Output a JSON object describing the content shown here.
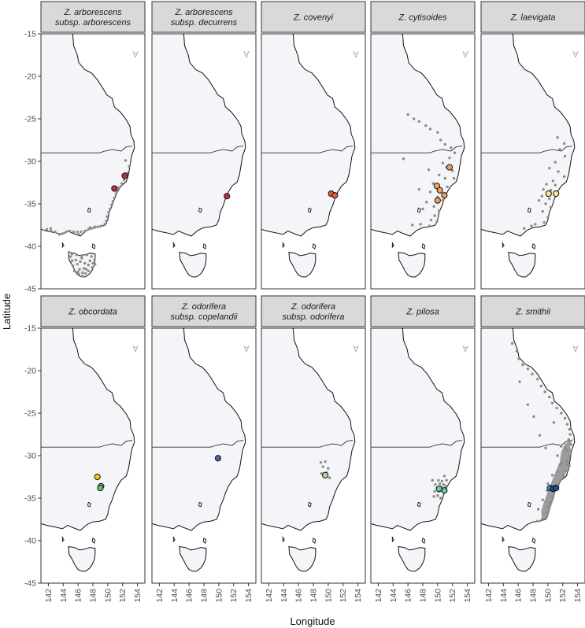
{
  "chart_data": {
    "type": "scatter",
    "xlabel": "Longitude",
    "ylabel": "Latitude",
    "xlim": [
      141,
      155
    ],
    "ylim": [
      -45,
      -15
    ],
    "xticks": [
      142,
      144,
      146,
      148,
      150,
      152,
      154
    ],
    "yticks": [
      -15,
      -20,
      -25,
      -30,
      -35,
      -40,
      -45
    ],
    "north_arrow": "Ɐ",
    "colors": {
      "land": "#f3f5f8",
      "coast": "#111111",
      "strip_bg": "#d9d9d9",
      "occurrence": "#8c8c8c",
      "outline": "#111111"
    },
    "panels": [
      {
        "title": [
          "Z. arborescens",
          "subsp. arborescens"
        ],
        "background": [
          [
            152.4,
            -29.9
          ],
          [
            152.9,
            -30.6
          ],
          [
            152.6,
            -31.4
          ],
          [
            152.2,
            -32.2
          ],
          [
            151.9,
            -32.6
          ],
          [
            151.5,
            -33.1
          ],
          [
            151.3,
            -33.5
          ],
          [
            151.1,
            -33.8
          ],
          [
            150.9,
            -34.3
          ],
          [
            150.7,
            -34.7
          ],
          [
            150.5,
            -35.1
          ],
          [
            150.3,
            -35.6
          ],
          [
            150.1,
            -36.0
          ],
          [
            149.9,
            -36.5
          ],
          [
            149.8,
            -37.0
          ],
          [
            149.6,
            -37.4
          ],
          [
            149.1,
            -37.6
          ],
          [
            148.7,
            -37.7
          ],
          [
            148.2,
            -37.8
          ],
          [
            147.8,
            -37.9
          ],
          [
            147.4,
            -38.0
          ],
          [
            146.9,
            -38.2
          ],
          [
            146.4,
            -38.3
          ],
          [
            145.9,
            -38.3
          ],
          [
            145.4,
            -38.3
          ],
          [
            144.9,
            -38.2
          ],
          [
            144.4,
            -38.3
          ],
          [
            143.9,
            -38.5
          ],
          [
            143.5,
            -38.6
          ],
          [
            142.9,
            -38.3
          ],
          [
            142.4,
            -38.2
          ],
          [
            141.8,
            -38.0
          ],
          [
            142.3,
            -37.9
          ],
          [
            146.1,
            -38.6
          ],
          [
            147.6,
            -37.8
          ],
          [
            148.3,
            -37.7
          ],
          [
            145.2,
            -40.9
          ],
          [
            145.8,
            -41.0
          ],
          [
            146.5,
            -41.1
          ],
          [
            147.2,
            -41.0
          ],
          [
            147.8,
            -41.2
          ],
          [
            148.2,
            -41.6
          ],
          [
            148.3,
            -42.1
          ],
          [
            147.9,
            -42.5
          ],
          [
            147.4,
            -42.9
          ],
          [
            147.0,
            -43.2
          ],
          [
            146.6,
            -43.5
          ],
          [
            146.1,
            -43.3
          ],
          [
            145.5,
            -42.9
          ],
          [
            145.3,
            -42.3
          ],
          [
            145.2,
            -41.7
          ],
          [
            145.7,
            -41.6
          ],
          [
            146.3,
            -41.8
          ],
          [
            146.9,
            -42.0
          ],
          [
            147.4,
            -42.2
          ],
          [
            146.8,
            -42.6
          ],
          [
            146.2,
            -42.7
          ],
          [
            145.9,
            -42.1
          ],
          [
            146.5,
            -41.4
          ],
          [
            147.6,
            -41.7
          ],
          [
            148.0,
            -42.0
          ],
          [
            146.0,
            -43.0
          ],
          [
            146.6,
            -43.1
          ],
          [
            147.1,
            -42.7
          ],
          [
            144.8,
            -40.7
          ],
          [
            145.0,
            -41.2
          ]
        ],
        "highlight": [
          [
            152.3,
            -31.7
          ],
          [
            150.9,
            -33.2
          ]
        ],
        "highlight_color": "#c0303e"
      },
      {
        "title": [
          "Z. arborescens",
          "subsp. decurrens"
        ],
        "background": [],
        "highlight": [
          [
            151.1,
            -34.1
          ]
        ],
        "highlight_color": "#c0303e"
      },
      {
        "title": [
          "Z. covenyi"
        ],
        "background": [],
        "highlight": [
          [
            150.4,
            -33.8
          ],
          [
            150.9,
            -34.0
          ]
        ],
        "highlight_color": "#e55a3c"
      },
      {
        "title": [
          "Z. cytisoides"
        ],
        "background": [
          [
            146.0,
            -24.5
          ],
          [
            146.8,
            -25.0
          ],
          [
            147.5,
            -25.3
          ],
          [
            148.4,
            -25.8
          ],
          [
            149.0,
            -26.2
          ],
          [
            150.0,
            -26.6
          ],
          [
            150.4,
            -27.5
          ],
          [
            151.0,
            -28.0
          ],
          [
            151.8,
            -28.4
          ],
          [
            152.3,
            -29.0
          ],
          [
            151.6,
            -29.6
          ],
          [
            150.7,
            -30.2
          ],
          [
            151.2,
            -30.7
          ],
          [
            152.0,
            -31.1
          ],
          [
            150.2,
            -31.6
          ],
          [
            151.0,
            -32.0
          ],
          [
            152.2,
            -32.0
          ],
          [
            149.4,
            -32.6
          ],
          [
            150.3,
            -33.2
          ],
          [
            151.3,
            -33.0
          ],
          [
            149.0,
            -33.6
          ],
          [
            150.0,
            -34.2
          ],
          [
            150.7,
            -34.6
          ],
          [
            149.5,
            -35.3
          ],
          [
            150.2,
            -35.8
          ],
          [
            149.6,
            -36.4
          ],
          [
            148.5,
            -34.8
          ],
          [
            148.0,
            -35.6
          ],
          [
            149.1,
            -36.9
          ],
          [
            149.9,
            -37.1
          ],
          [
            146.6,
            -37.5
          ],
          [
            147.7,
            -37.4
          ],
          [
            148.9,
            -37.6
          ],
          [
            145.4,
            -29.7
          ],
          [
            148.8,
            -31.0
          ],
          [
            147.5,
            -33.3
          ]
        ],
        "highlight": [
          [
            151.6,
            -30.7
          ],
          [
            149.9,
            -32.9
          ],
          [
            150.3,
            -33.4
          ],
          [
            150.9,
            -34.0
          ],
          [
            150.0,
            -34.6
          ]
        ],
        "highlight_color": "#f5a05a"
      },
      {
        "title": [
          "Z. laevigata"
        ],
        "background": [
          [
            151.3,
            -27.2
          ],
          [
            152.2,
            -27.9
          ],
          [
            151.6,
            -28.6
          ],
          [
            152.3,
            -29.4
          ],
          [
            151.0,
            -30.1
          ],
          [
            150.2,
            -30.8
          ],
          [
            151.4,
            -31.2
          ],
          [
            152.2,
            -31.8
          ],
          [
            150.7,
            -32.3
          ],
          [
            149.8,
            -32.7
          ],
          [
            151.0,
            -32.8
          ],
          [
            149.4,
            -33.3
          ],
          [
            150.4,
            -33.4
          ],
          [
            151.3,
            -33.6
          ],
          [
            149.2,
            -34.1
          ],
          [
            150.2,
            -34.4
          ],
          [
            149.7,
            -35.0
          ],
          [
            150.4,
            -35.4
          ],
          [
            149.3,
            -35.9
          ],
          [
            150.0,
            -36.6
          ],
          [
            149.5,
            -37.2
          ],
          [
            148.3,
            -37.4
          ],
          [
            147.8,
            -37.6
          ],
          [
            146.8,
            -37.9
          ],
          [
            148.8,
            -34.6
          ]
        ],
        "highlight": [
          [
            150.1,
            -33.8
          ],
          [
            151.1,
            -33.8
          ]
        ],
        "highlight_color": "#fde58a"
      },
      {
        "title": [
          "Z. obcordata"
        ],
        "background": [],
        "highlight": [
          [
            148.6,
            -32.5
          ],
          [
            149.1,
            -33.6
          ],
          [
            149.0,
            -33.8
          ]
        ],
        "highlight_colors": [
          "#f2c418",
          "#6cbf6e",
          "#6cbf6e"
        ],
        "highlight_color": "#f2c418"
      },
      {
        "title": [
          "Z. odorifera",
          "subsp. copelandii"
        ],
        "background": [],
        "highlight": [
          [
            149.9,
            -30.3
          ]
        ],
        "highlight_color": "#5b5fa3"
      },
      {
        "title": [
          "Z. odorifera",
          "subsp. odorifera"
        ],
        "background": [
          [
            149.0,
            -30.8
          ],
          [
            149.6,
            -30.7
          ],
          [
            149.3,
            -31.3
          ],
          [
            150.0,
            -31.5
          ],
          [
            149.1,
            -32.1
          ],
          [
            149.8,
            -32.0
          ],
          [
            150.2,
            -32.6
          ]
        ],
        "highlight": [
          [
            149.6,
            -32.3
          ]
        ],
        "highlight_color": "#a6dba0"
      },
      {
        "title": [
          "Z. pilosa"
        ],
        "background": [
          [
            150.1,
            -32.9
          ],
          [
            150.6,
            -33.0
          ],
          [
            151.2,
            -32.9
          ],
          [
            149.7,
            -33.4
          ],
          [
            150.3,
            -33.3
          ],
          [
            150.8,
            -33.4
          ],
          [
            149.9,
            -33.8
          ],
          [
            150.5,
            -33.7
          ],
          [
            151.1,
            -33.6
          ],
          [
            149.6,
            -34.2
          ],
          [
            150.1,
            -34.2
          ],
          [
            150.6,
            -34.1
          ],
          [
            150.0,
            -34.7
          ],
          [
            150.4,
            -35.0
          ],
          [
            149.3,
            -32.9
          ],
          [
            150.9,
            -32.4
          ],
          [
            149.5,
            -34.8
          ]
        ],
        "highlight": [
          [
            150.2,
            -33.9
          ],
          [
            150.9,
            -34.1
          ]
        ],
        "highlight_color": "#6cc6a8"
      },
      {
        "title": [
          "Z. smithii"
        ],
        "background": [
          [
            145.2,
            -16.8
          ],
          [
            145.8,
            -17.7
          ],
          [
            146.1,
            -18.6
          ],
          [
            146.6,
            -19.3
          ],
          [
            147.3,
            -19.8
          ],
          [
            147.9,
            -20.4
          ],
          [
            148.6,
            -21.0
          ],
          [
            149.1,
            -21.8
          ],
          [
            149.6,
            -22.5
          ],
          [
            150.2,
            -23.1
          ],
          [
            150.6,
            -23.8
          ],
          [
            151.2,
            -24.4
          ],
          [
            151.8,
            -25.0
          ],
          [
            152.3,
            -25.6
          ],
          [
            152.6,
            -26.3
          ],
          [
            152.9,
            -26.9
          ],
          [
            153.0,
            -27.5
          ],
          [
            152.8,
            -28.1
          ],
          [
            153.1,
            -28.7
          ],
          [
            152.6,
            -29.4
          ],
          [
            152.9,
            -30.0
          ],
          [
            152.6,
            -30.6
          ],
          [
            152.9,
            -31.2
          ],
          [
            152.3,
            -31.8
          ],
          [
            152.1,
            -32.4
          ],
          [
            151.7,
            -32.9
          ],
          [
            151.4,
            -33.4
          ],
          [
            151.0,
            -33.9
          ],
          [
            150.8,
            -34.4
          ],
          [
            150.6,
            -34.9
          ],
          [
            150.3,
            -35.5
          ],
          [
            150.1,
            -36.0
          ],
          [
            149.9,
            -36.6
          ],
          [
            149.8,
            -37.2
          ],
          [
            149.2,
            -37.5
          ],
          [
            148.6,
            -37.7
          ],
          [
            151.8,
            -28.9
          ],
          [
            151.3,
            -30.0
          ],
          [
            151.6,
            -31.1
          ],
          [
            150.6,
            -32.3
          ],
          [
            150.0,
            -33.3
          ],
          [
            149.9,
            -34.1
          ],
          [
            149.3,
            -35.2
          ],
          [
            148.7,
            -36.3
          ],
          [
            148.1,
            -25.4
          ],
          [
            147.3,
            -24.0
          ],
          [
            148.9,
            -27.6
          ],
          [
            150.8,
            -26.1
          ],
          [
            146.2,
            -21.3
          ],
          [
            149.7,
            -29.1
          ],
          [
            152.3,
            -29.1
          ],
          [
            151.9,
            -30.9
          ],
          [
            151.3,
            -31.9
          ],
          [
            152.6,
            -31.0
          ]
        ],
        "background_region": {
          "rings": [
            [
              [
                153.5,
                -28.0
              ],
              [
                152.9,
                -28.7
              ],
              [
                153.2,
                -29.6
              ],
              [
                152.9,
                -30.7
              ],
              [
                152.6,
                -31.8
              ],
              [
                152.1,
                -32.6
              ],
              [
                151.5,
                -33.3
              ],
              [
                151.1,
                -34.0
              ],
              [
                150.9,
                -34.8
              ],
              [
                150.5,
                -35.8
              ],
              [
                150.2,
                -36.7
              ],
              [
                149.9,
                -37.5
              ],
              [
                149.2,
                -37.5
              ],
              [
                149.1,
                -36.5
              ],
              [
                149.5,
                -35.4
              ],
              [
                150.0,
                -34.2
              ],
              [
                150.5,
                -33.1
              ],
              [
                151.0,
                -32.0
              ],
              [
                151.6,
                -30.8
              ],
              [
                151.8,
                -29.6
              ],
              [
                152.3,
                -28.6
              ]
            ]
          ]
        },
        "highlight": [
          [
            150.3,
            -33.8
          ],
          [
            150.7,
            -33.9
          ],
          [
            151.1,
            -33.8
          ]
        ],
        "highlight_colors": [
          "#3a8fbf",
          "#1f4e8c",
          "#1f4e8c"
        ],
        "highlight_color": "#2c6fa8"
      }
    ]
  }
}
